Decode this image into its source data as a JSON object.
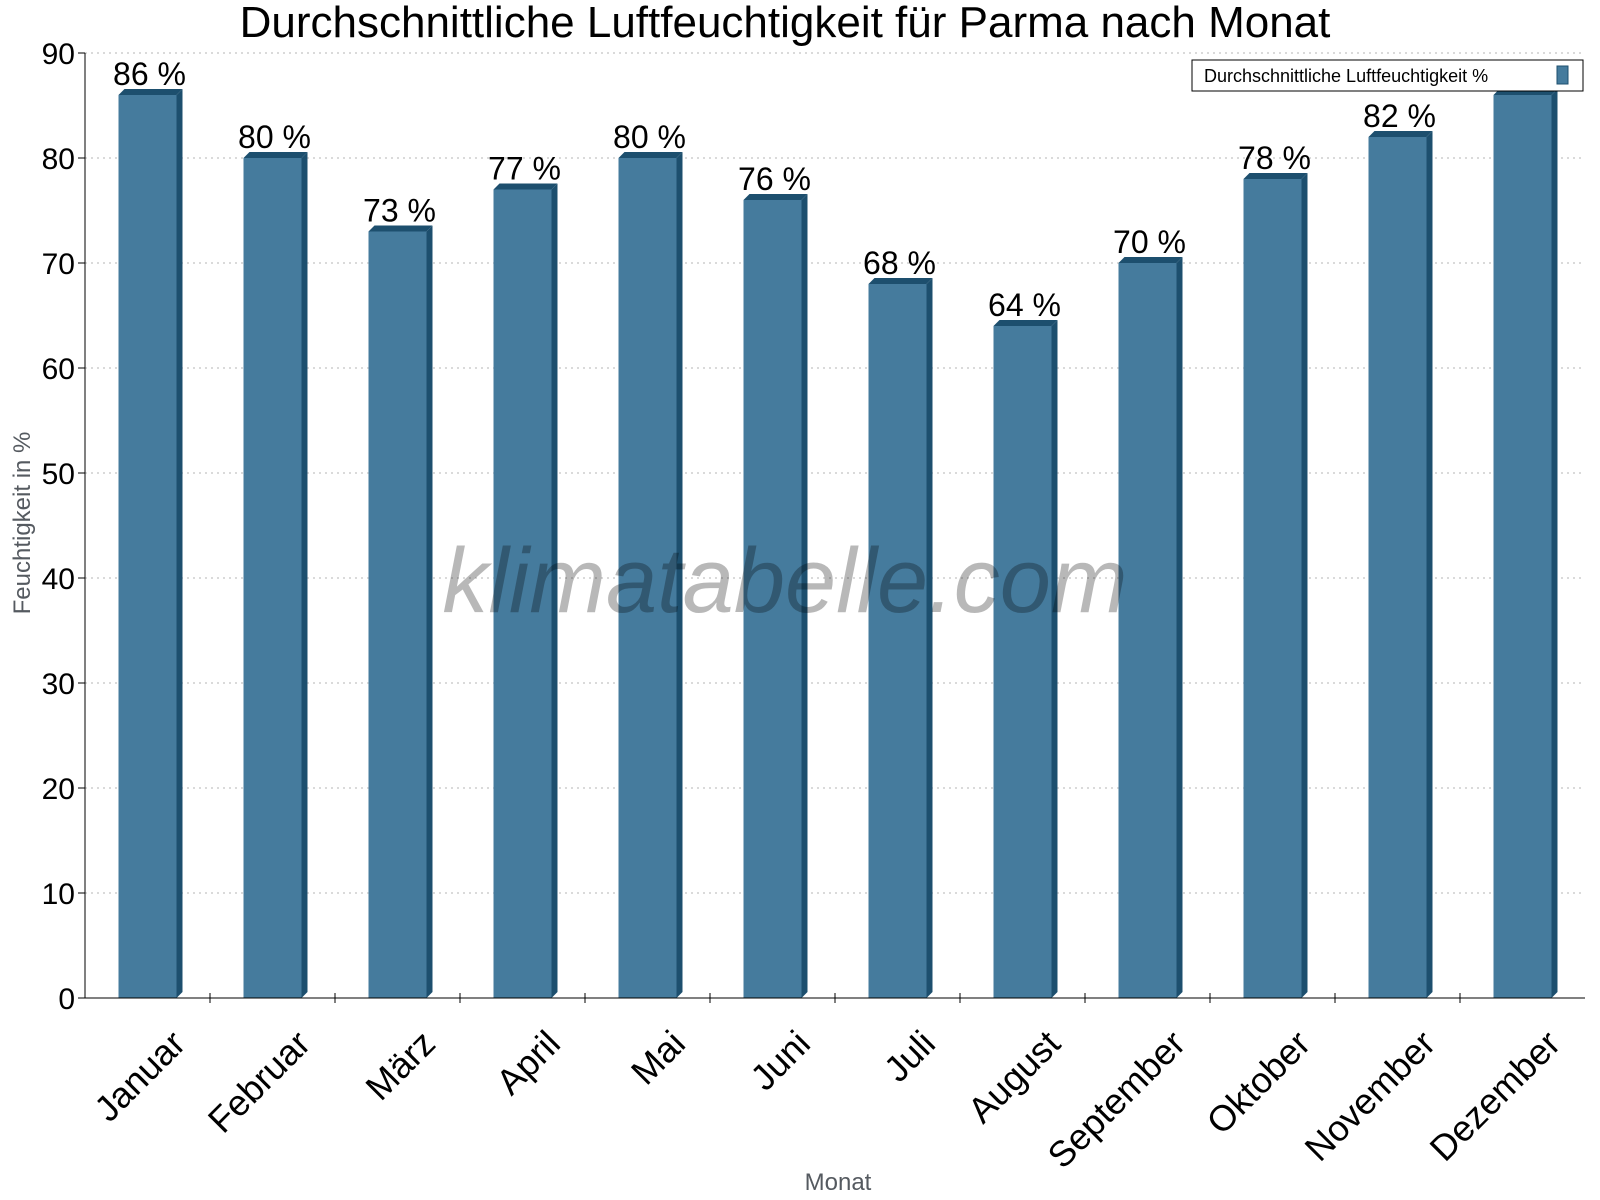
{
  "chart_data": {
    "type": "bar",
    "title": "Durchschnittliche Luftfeuchtigkeit für Parma nach Monat",
    "xlabel": "Monat",
    "ylabel": "Feuchtigkeit in %",
    "ylim": [
      0,
      90
    ],
    "yticks": [
      0,
      10,
      20,
      30,
      40,
      50,
      60,
      70,
      80,
      90
    ],
    "grid": true,
    "legend_position": "top-right",
    "categories": [
      "Januar",
      "Februar",
      "März",
      "April",
      "Mai",
      "Juni",
      "Juli",
      "August",
      "September",
      "Oktober",
      "November",
      "Dezember"
    ],
    "series": [
      {
        "name": "Durchschnittliche Luftfeuchtigkeit %",
        "values": [
          86,
          80,
          73,
          77,
          80,
          76,
          68,
          64,
          70,
          78,
          82,
          86
        ],
        "labels": [
          "86 %",
          "80 %",
          "73 %",
          "77 %",
          "80 %",
          "76 %",
          "68 %",
          "64 %",
          "70 %",
          "78 %",
          "82 %",
          ""
        ],
        "color": "#457b9d",
        "side_color": "#1d4f6e"
      }
    ],
    "watermark": "klimatabelle.com"
  }
}
